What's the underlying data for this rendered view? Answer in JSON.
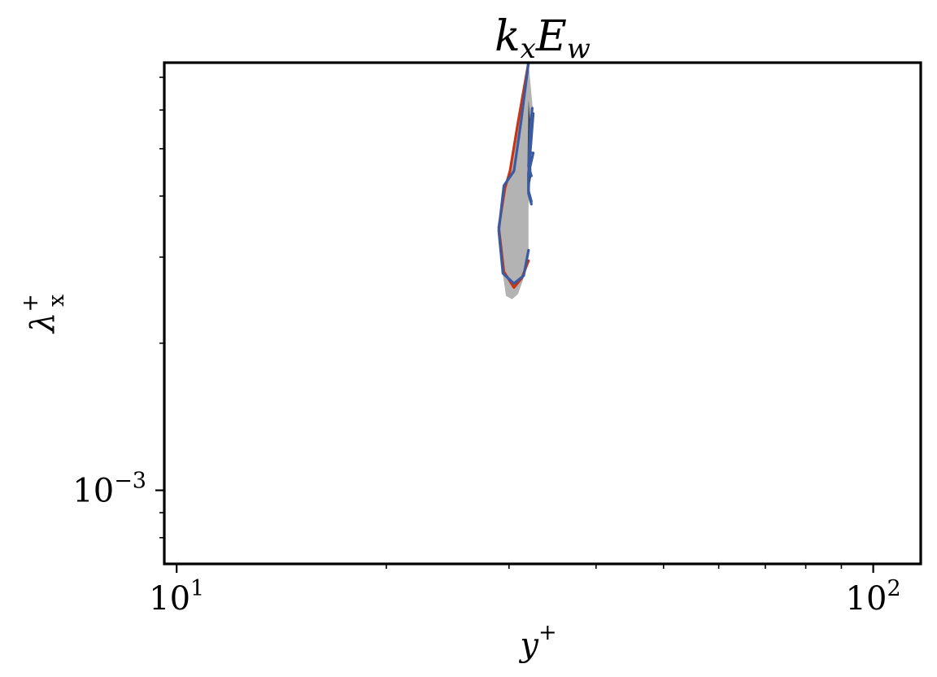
{
  "chart_data": {
    "type": "contour",
    "title": {
      "main": "k",
      "sub1": "x",
      "mid": "E",
      "sub2": "w"
    },
    "xlabel": {
      "base": "y",
      "sup": "+"
    },
    "ylabel": {
      "base": "λ",
      "sup": "+",
      "sub": "x"
    },
    "xscale": "log",
    "yscale": "log",
    "xlim": [
      9.6,
      117
    ],
    "ylim": [
      0.000707,
      0.0075
    ],
    "grid": false,
    "xticks": [
      {
        "value": 10,
        "base": "10",
        "exp": "1"
      },
      {
        "value": 100,
        "base": "10",
        "exp": "2"
      }
    ],
    "yticks": [
      {
        "value": 0.001,
        "base": "10",
        "exp": "−3"
      }
    ],
    "colors": {
      "filled_region": "#b3b3b3",
      "dark_region": "#1f2a44",
      "red_contour": "#cc3311",
      "blue_contour": "#3a5ba0",
      "axes": "#000000"
    },
    "series": [
      {
        "kind": "filled",
        "points": [
          [
            32.0,
            0.0075
          ],
          [
            30.8,
            0.00565
          ],
          [
            30.0,
            0.0045
          ],
          [
            29.5,
            0.00415
          ],
          [
            29.0,
            0.00342
          ],
          [
            29.3,
            0.00286
          ],
          [
            29.7,
            0.0025
          ],
          [
            30.3,
            0.00246
          ],
          [
            30.9,
            0.00252
          ],
          [
            31.5,
            0.00272
          ],
          [
            32.0,
            0.00305
          ],
          [
            32.0,
            0.00385
          ],
          [
            32.3,
            0.0045
          ],
          [
            32.2,
            0.0052
          ],
          [
            32.5,
            0.0059
          ],
          [
            32.0,
            0.0075
          ]
        ]
      },
      {
        "kind": "line",
        "points": [
          [
            32.0,
            0.0075
          ],
          [
            30.9,
            0.00565
          ],
          [
            30.1,
            0.0045
          ],
          [
            29.6,
            0.00415
          ],
          [
            29.0,
            0.00345
          ],
          [
            29.5,
            0.0028
          ],
          [
            30.5,
            0.0026
          ],
          [
            31.3,
            0.00272
          ],
          [
            32.0,
            0.00295
          ]
        ]
      },
      {
        "kind": "line",
        "points": [
          [
            32.0,
            0.0075
          ],
          [
            31.2,
            0.00565
          ],
          [
            30.5,
            0.0045
          ],
          [
            29.5,
            0.0042
          ],
          [
            29.0,
            0.0034
          ],
          [
            29.4,
            0.00278
          ],
          [
            30.5,
            0.00265
          ],
          [
            31.5,
            0.00275
          ],
          [
            32.0,
            0.0031
          ]
        ]
      },
      {
        "kind": "line",
        "points": [
          [
            32.5,
            0.0059
          ],
          [
            32.0,
            0.00445
          ],
          [
            32.0,
            0.00405
          ],
          [
            32.3,
            0.00385
          ]
        ]
      },
      {
        "kind": "line",
        "points": [
          [
            32.4,
            0.00605
          ],
          [
            32.2,
            0.0055
          ],
          [
            32.0,
            0.0046
          ],
          [
            32.3,
            0.0044
          ]
        ]
      },
      {
        "kind": "line",
        "points": [
          [
            32.2,
            0.0049
          ],
          [
            32.5,
            0.0049
          ],
          [
            32.0,
            0.00445
          ],
          [
            32.0,
            0.0041
          ],
          [
            32.3,
            0.0039
          ]
        ]
      }
    ]
  }
}
